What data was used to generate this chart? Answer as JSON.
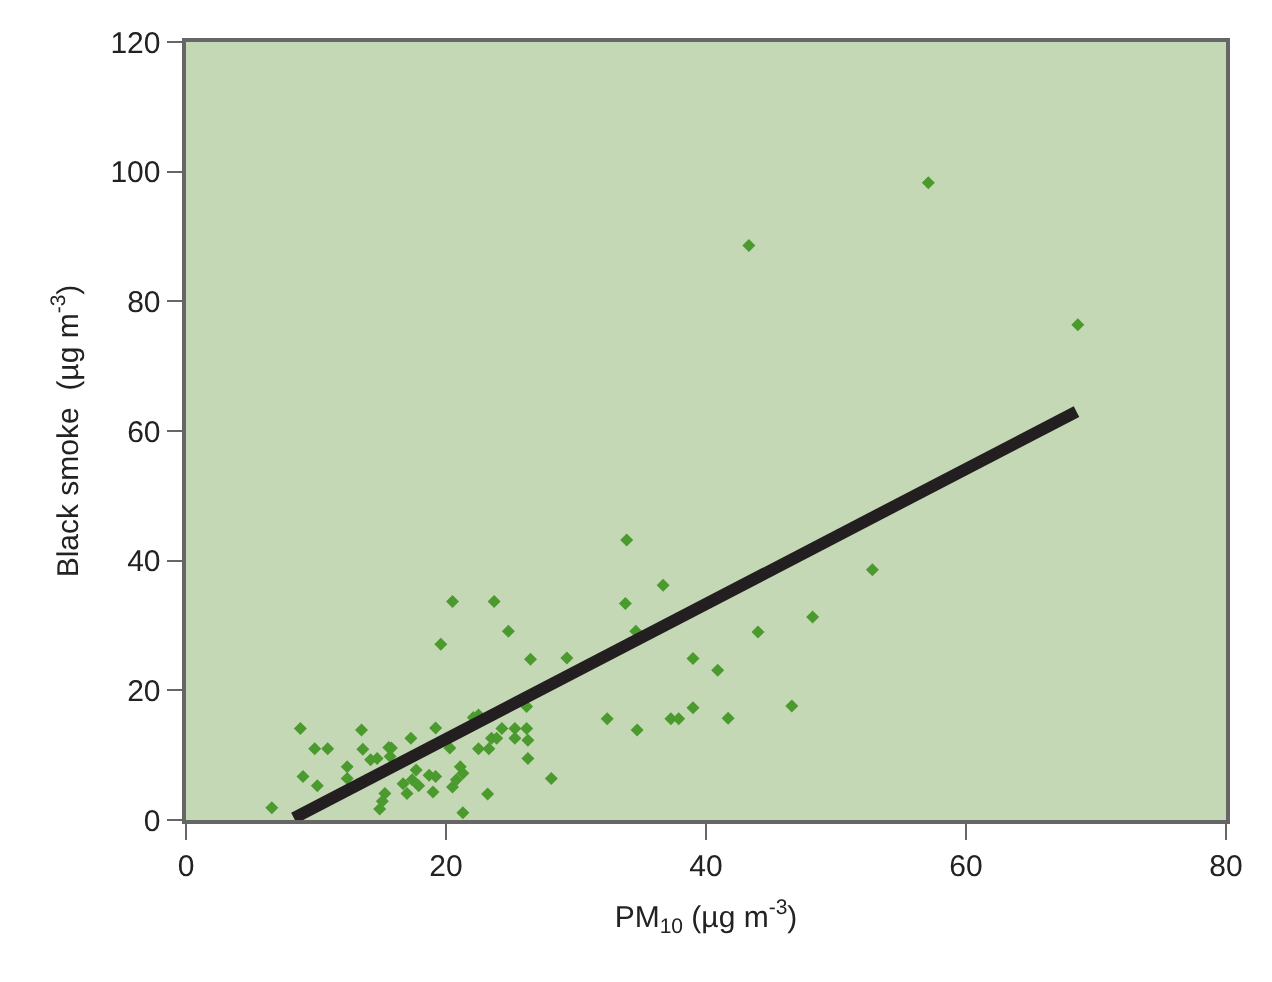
{
  "chart_data": {
    "type": "scatter",
    "xlabel": "PM$_{10}$ (µg m$^{-3}$)",
    "ylabel": "Black smoke  (µg m$^{-3}$)",
    "xlim": [
      0,
      80
    ],
    "xticks": [
      0,
      20,
      40,
      60,
      80
    ],
    "ylim": [
      0,
      120
    ],
    "yticks": [
      0,
      20,
      40,
      60,
      80,
      100,
      120
    ],
    "grid": false,
    "series": [
      {
        "marker": "diamond",
        "color": "#4a9a2e",
        "x": [
          6.6,
          8.8,
          9.9,
          10.9,
          9.0,
          10.1,
          12.4,
          12.4,
          13.5,
          13.6,
          14.2,
          14.7,
          15.6,
          15.8,
          15.7,
          17.3,
          16.7,
          17.0,
          17.4,
          17.7,
          17.9,
          15.3,
          14.9,
          15.1,
          18.7,
          19.2,
          19.0,
          19.2,
          19.6,
          20.5,
          23.7,
          20.3,
          20.5,
          20.8,
          21.1,
          21.3,
          21.3,
          22.1,
          22.5,
          22.5,
          23.2,
          23.3,
          23.5,
          23.9,
          24.3,
          24.8,
          25.3,
          25.3,
          26.2,
          26.3,
          26.3,
          26.2,
          26.5,
          28.1,
          29.3,
          32.4,
          34.7,
          33.8,
          34.6,
          37.3,
          37.9,
          33.9,
          36.7,
          57.1,
          43.3,
          68.6,
          44.0,
          52.8,
          48.2,
          39.0,
          40.9,
          39.0,
          41.7,
          46.6
        ],
        "values": [
          1.9,
          14.1,
          11.0,
          11.0,
          6.7,
          5.3,
          8.2,
          6.4,
          13.9,
          10.9,
          9.3,
          9.5,
          11.2,
          11.1,
          9.8,
          12.6,
          5.6,
          4.1,
          6.2,
          7.7,
          5.3,
          4.1,
          1.7,
          2.9,
          6.9,
          6.7,
          4.3,
          14.2,
          27.1,
          33.7,
          33.7,
          11.1,
          5.1,
          6.2,
          8.2,
          7.2,
          1.1,
          15.8,
          16.2,
          11.0,
          4.0,
          11.0,
          12.6,
          12.6,
          14.1,
          29.1,
          14.1,
          12.6,
          14.1,
          12.3,
          9.5,
          17.5,
          24.8,
          6.4,
          25.0,
          15.6,
          13.9,
          33.4,
          29.1,
          15.6,
          15.6,
          43.2,
          36.2,
          98.3,
          88.6,
          76.4,
          29.0,
          38.6,
          31.3,
          24.9,
          23.1,
          17.3,
          15.7,
          17.6
        ]
      },
      {
        "type": "line",
        "marker": "none",
        "color": "#231f20",
        "x": [
          8.3,
          68.5
        ],
        "values": [
          0.3,
          63
        ]
      }
    ]
  }
}
